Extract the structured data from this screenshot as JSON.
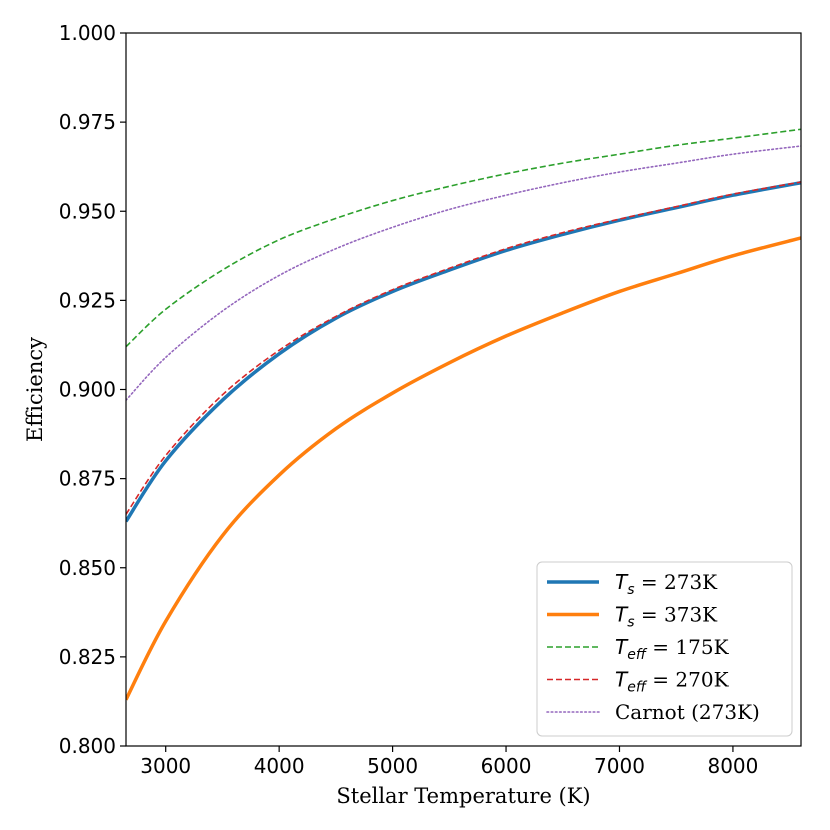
{
  "chart_data": {
    "type": "line",
    "title": "",
    "xlabel": "Stellar Temperature (K)",
    "ylabel": "Efficiency",
    "xlim": [
      2650,
      8600
    ],
    "ylim": [
      0.8,
      1.0
    ],
    "xticks": [
      3000,
      4000,
      5000,
      6000,
      7000,
      8000
    ],
    "xtick_labels": [
      "3000",
      "4000",
      "5000",
      "6000",
      "7000",
      "8000"
    ],
    "yticks": [
      0.8,
      0.825,
      0.85,
      0.875,
      0.9,
      0.925,
      0.95,
      0.975,
      1.0
    ],
    "ytick_labels": [
      "0.800",
      "0.825",
      "0.850",
      "0.875",
      "0.900",
      "0.925",
      "0.950",
      "0.975",
      "1.000"
    ],
    "grid": false,
    "legend_position": "lower-right",
    "x": [
      2650,
      3000,
      3500,
      4000,
      4500,
      5000,
      5500,
      6000,
      6500,
      7000,
      7500,
      8000,
      8600
    ],
    "series": [
      {
        "legend_main": "T",
        "legend_sub": "s",
        "legend_rest": " = 273K",
        "color": "#1f77b4",
        "style": "solid",
        "width": 3.5,
        "values": [
          0.863,
          0.88,
          0.897,
          0.91,
          0.92,
          0.9275,
          0.9335,
          0.939,
          0.9435,
          0.9475,
          0.951,
          0.9545,
          0.958
        ]
      },
      {
        "legend_main": "T",
        "legend_sub": "s",
        "legend_rest": " = 373K",
        "color": "#ff7f0e",
        "style": "solid",
        "width": 3.5,
        "values": [
          0.813,
          0.835,
          0.859,
          0.876,
          0.889,
          0.899,
          0.9075,
          0.915,
          0.9215,
          0.9275,
          0.9325,
          0.9375,
          0.9425
        ]
      },
      {
        "legend_main": "T",
        "legend_sub": "eff",
        "legend_rest": " = 175K",
        "color": "#2ca02c",
        "style": "dashed",
        "width": 1.6,
        "values": [
          0.912,
          0.9225,
          0.9335,
          0.942,
          0.948,
          0.953,
          0.957,
          0.9605,
          0.9635,
          0.966,
          0.9685,
          0.9705,
          0.973
        ]
      },
      {
        "legend_main": "T",
        "legend_sub": "eff",
        "legend_rest": " = 270K",
        "color": "#d62728",
        "style": "dashed",
        "width": 1.6,
        "values": [
          0.865,
          0.8815,
          0.8985,
          0.911,
          0.9205,
          0.928,
          0.934,
          0.9395,
          0.944,
          0.9478,
          0.9513,
          0.9548,
          0.9582
        ]
      },
      {
        "legend_main": "Carnot (273K)",
        "legend_sub": "",
        "legend_rest": "",
        "color": "#9467bd",
        "style": "dotted",
        "width": 1.6,
        "values": [
          0.897,
          0.909,
          0.922,
          0.932,
          0.9395,
          0.9455,
          0.9505,
          0.9545,
          0.958,
          0.961,
          0.9635,
          0.966,
          0.9683
        ]
      }
    ]
  }
}
